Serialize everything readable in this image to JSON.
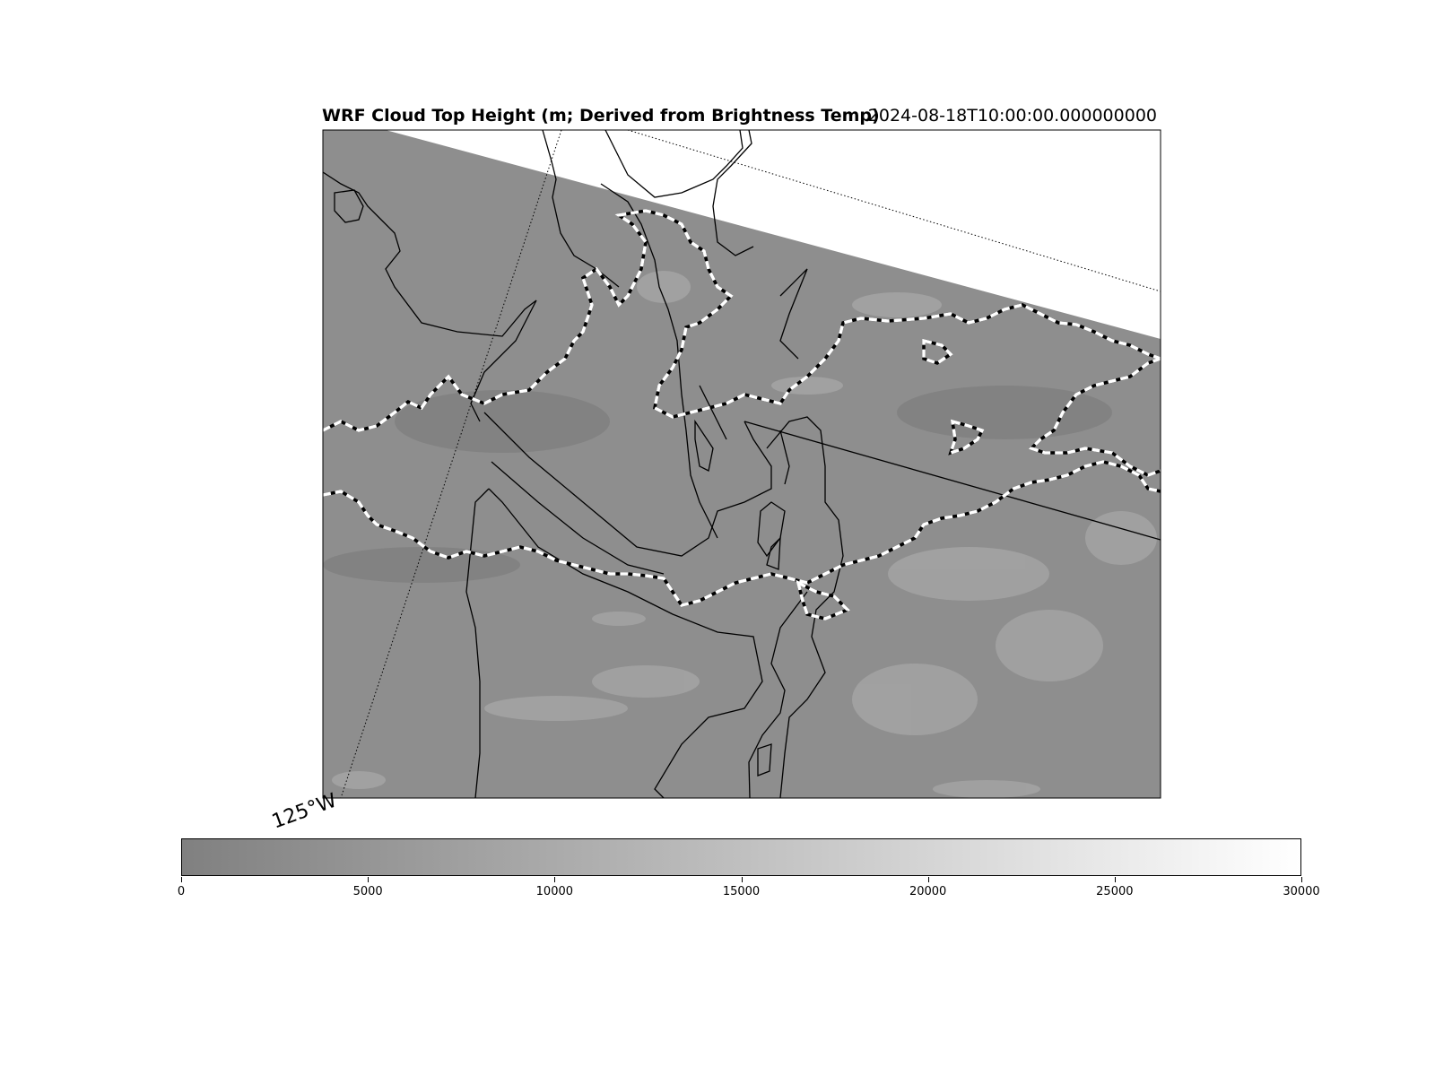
{
  "title": {
    "left": "WRF Cloud Top Height (m; Derived from Brightness Temp)",
    "right": "2024-08-18T10:00:00.000000000"
  },
  "colorbar": {
    "vmin": 0,
    "vmax": 30000,
    "ticks": [
      "0",
      "5000",
      "10000",
      "15000",
      "20000",
      "25000",
      "30000"
    ],
    "color_low": "#808080",
    "color_high": "#ffffff"
  },
  "gridline_label": "125°W",
  "colors": {
    "field_base": "#8c8c8c",
    "field_light": "#a6a6a6",
    "coast": "#000000",
    "contour_dash": "#ffffff"
  }
}
